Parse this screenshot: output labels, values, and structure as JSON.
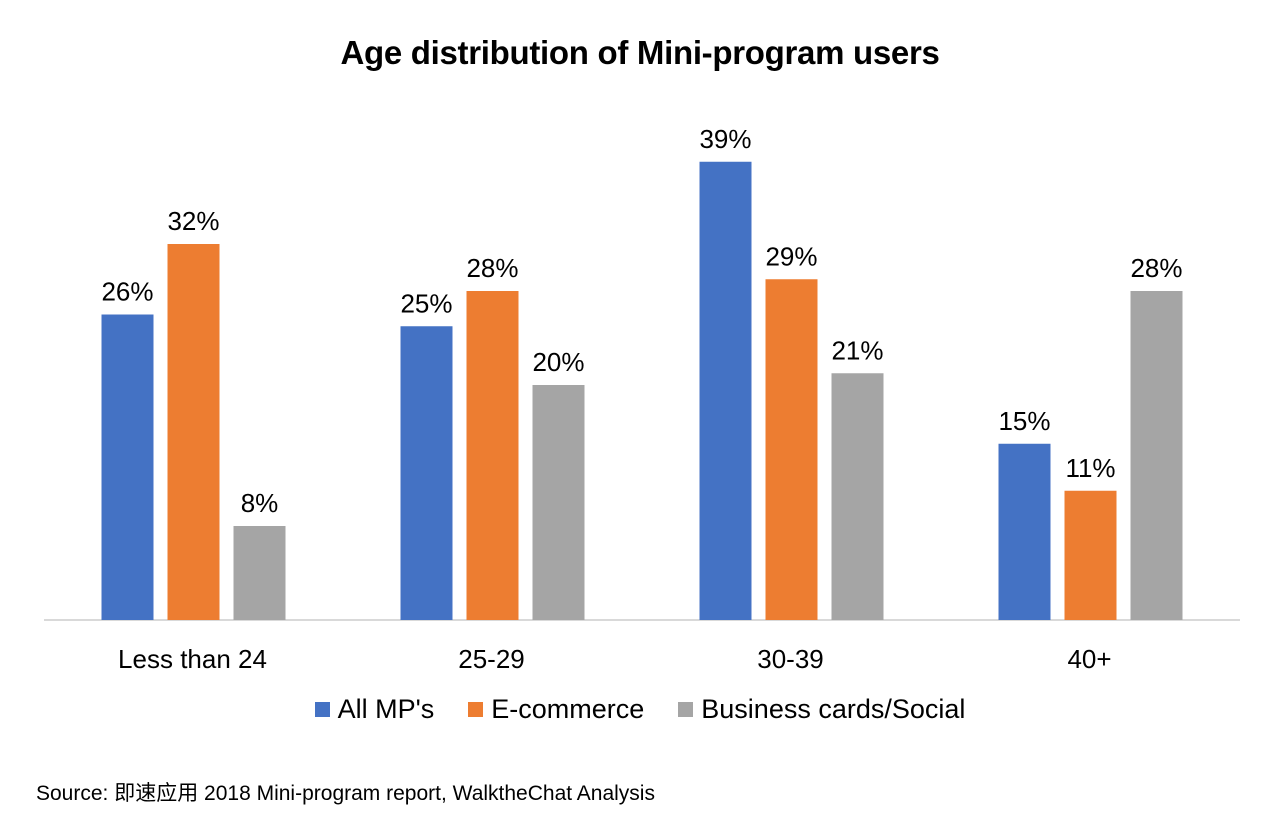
{
  "chart_data": {
    "type": "bar",
    "title": "Age distribution of Mini-program users",
    "categories": [
      "Less than 24",
      "25-29",
      "30-39",
      "40+"
    ],
    "series": [
      {
        "name": "All MP's",
        "values": [
          26,
          25,
          39,
          15
        ],
        "labels": [
          "26%",
          "25%",
          "39%",
          "15%"
        ],
        "color": "#4472c4"
      },
      {
        "name": "E-commerce",
        "values": [
          32,
          28,
          29,
          11
        ],
        "labels": [
          "32%",
          "28%",
          "29%",
          "11%"
        ],
        "color": "#ed7d31"
      },
      {
        "name": "Business cards/Social",
        "values": [
          8,
          20,
          21,
          28
        ],
        "labels": [
          "8%",
          "20%",
          "21%",
          "28%"
        ],
        "color": "#a5a5a5"
      }
    ],
    "xlabel": "",
    "ylabel": "",
    "ylim": [
      0,
      40
    ],
    "grid": false,
    "legend": "bottom"
  },
  "source": "Source: 即速应用 2018 Mini-program report, WalktheChat Analysis"
}
